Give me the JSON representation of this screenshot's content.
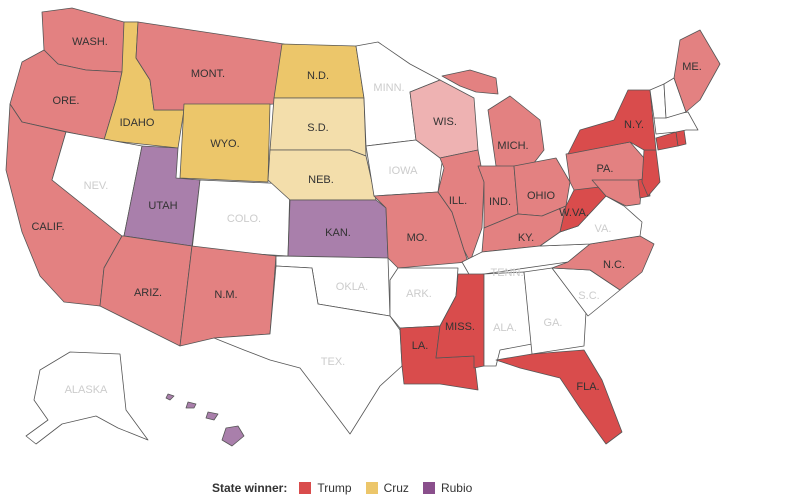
{
  "colors": {
    "trump_strong": "#d94c4c",
    "trump": "#e38181",
    "trump_light": "#eeb2b2",
    "cruz": "#ecc66a",
    "cruz_light": "#f3deab",
    "rubio": "#a97fab",
    "none": "#ffffff",
    "label_dark": "#333333",
    "label_light": "#cccccc"
  },
  "legend": {
    "title": "State winner:",
    "items": [
      {
        "label": "Trump",
        "color": "#d94c4c"
      },
      {
        "label": "Cruz",
        "color": "#ecc66a"
      },
      {
        "label": "Rubio",
        "color": "#8a4f8c"
      }
    ]
  },
  "states": [
    {
      "key": "wa",
      "label": "WASH.",
      "winner": "trump"
    },
    {
      "key": "or",
      "label": "ORE.",
      "winner": "trump"
    },
    {
      "key": "ca",
      "label": "CALIF.",
      "winner": "trump"
    },
    {
      "key": "id",
      "label": "IDAHO",
      "winner": "cruz"
    },
    {
      "key": "nv",
      "label": "NEV.",
      "winner": "none"
    },
    {
      "key": "mt",
      "label": "MONT.",
      "winner": "trump"
    },
    {
      "key": "wy",
      "label": "WYO.",
      "winner": "cruz"
    },
    {
      "key": "ut",
      "label": "UTAH",
      "winner": "rubio"
    },
    {
      "key": "az",
      "label": "ARIZ.",
      "winner": "trump"
    },
    {
      "key": "co",
      "label": "COLO.",
      "winner": "none"
    },
    {
      "key": "nm",
      "label": "N.M.",
      "winner": "trump"
    },
    {
      "key": "nd",
      "label": "N.D.",
      "winner": "cruz"
    },
    {
      "key": "sd",
      "label": "S.D.",
      "winner": "cruz_light"
    },
    {
      "key": "ne",
      "label": "NEB.",
      "winner": "cruz_light"
    },
    {
      "key": "ks",
      "label": "KAN.",
      "winner": "rubio"
    },
    {
      "key": "ok",
      "label": "OKLA.",
      "winner": "none"
    },
    {
      "key": "tx",
      "label": "TEX.",
      "winner": "none"
    },
    {
      "key": "mn",
      "label": "MINN.",
      "winner": "none"
    },
    {
      "key": "ia",
      "label": "IOWA",
      "winner": "none"
    },
    {
      "key": "mo",
      "label": "MO.",
      "winner": "trump"
    },
    {
      "key": "ar",
      "label": "ARK.",
      "winner": "none"
    },
    {
      "key": "la",
      "label": "LA.",
      "winner": "trump_strong"
    },
    {
      "key": "wi",
      "label": "WIS.",
      "winner": "trump_light"
    },
    {
      "key": "il",
      "label": "ILL.",
      "winner": "trump"
    },
    {
      "key": "mi",
      "label": "MICH.",
      "winner": "trump"
    },
    {
      "key": "in",
      "label": "IND.",
      "winner": "trump"
    },
    {
      "key": "oh",
      "label": "OHIO",
      "winner": "trump"
    },
    {
      "key": "ky",
      "label": "KY.",
      "winner": "trump"
    },
    {
      "key": "tn",
      "label": "TENN.",
      "winner": "none"
    },
    {
      "key": "ms",
      "label": "MISS.",
      "winner": "trump_strong"
    },
    {
      "key": "al",
      "label": "ALA.",
      "winner": "none"
    },
    {
      "key": "ga",
      "label": "GA.",
      "winner": "none"
    },
    {
      "key": "fl",
      "label": "FLA.",
      "winner": "trump_strong"
    },
    {
      "key": "sc",
      "label": "S.C.",
      "winner": "none"
    },
    {
      "key": "nc",
      "label": "N.C.",
      "winner": "trump"
    },
    {
      "key": "va",
      "label": "VA.",
      "winner": "none"
    },
    {
      "key": "wv",
      "label": "W.VA.",
      "winner": "trump_strong"
    },
    {
      "key": "pa",
      "label": "PA.",
      "winner": "trump"
    },
    {
      "key": "ny",
      "label": "N.Y.",
      "winner": "trump_strong"
    },
    {
      "key": "me",
      "label": "ME.",
      "winner": "trump"
    },
    {
      "key": "ak",
      "label": "ALASKA",
      "winner": "none"
    },
    {
      "key": "hi",
      "label": "",
      "winner": "rubio"
    },
    {
      "key": "nj",
      "label": "",
      "winner": "trump_strong"
    },
    {
      "key": "md",
      "label": "",
      "winner": "trump"
    },
    {
      "key": "de",
      "label": "",
      "winner": "trump_strong"
    },
    {
      "key": "ct",
      "label": "",
      "winner": "trump_strong"
    },
    {
      "key": "ri",
      "label": "",
      "winner": "trump_strong"
    },
    {
      "key": "ma",
      "label": "",
      "winner": "none"
    },
    {
      "key": "vt",
      "label": "",
      "winner": "none"
    },
    {
      "key": "nh",
      "label": "",
      "winner": "none"
    }
  ]
}
